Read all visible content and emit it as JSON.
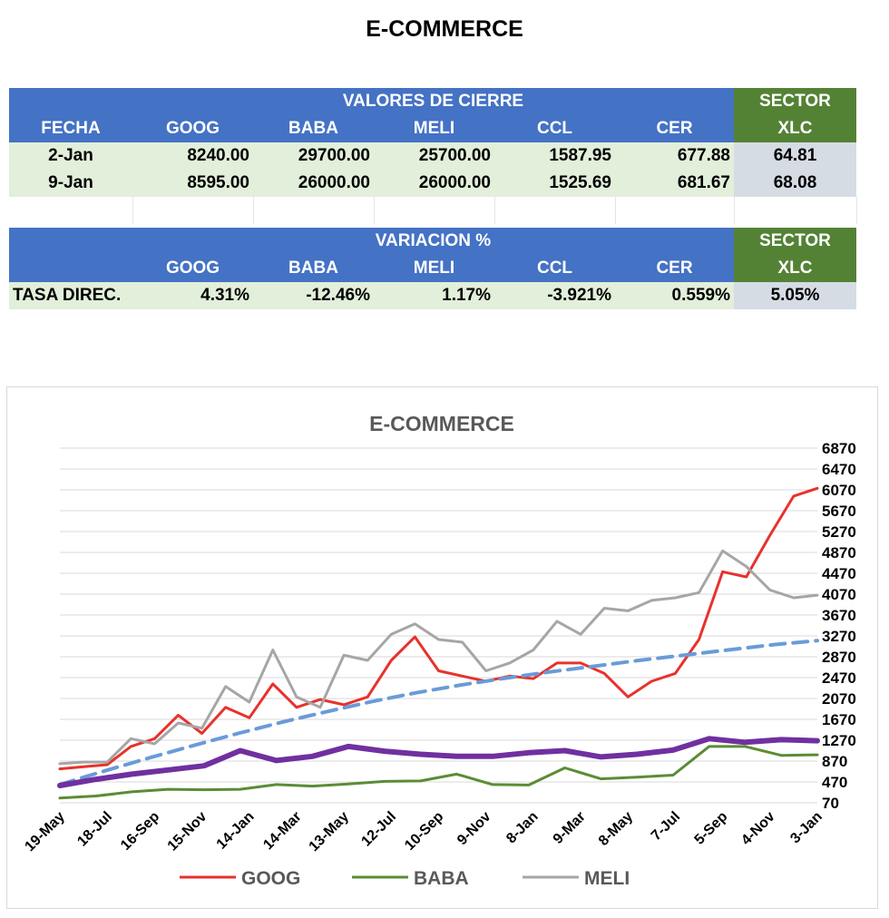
{
  "page": {
    "title": "E-COMMERCE"
  },
  "closing_table": {
    "group_header": "VALORES DE CIERRE",
    "sector_label": "SECTOR",
    "columns": [
      "FECHA",
      "GOOG",
      "BABA",
      "MELI",
      "CCL",
      "CER",
      "XLC"
    ],
    "rows": [
      [
        "2-Jan",
        "8240.00",
        "29700.00",
        "25700.00",
        "1587.95",
        "677.88",
        "64.81"
      ],
      [
        "9-Jan",
        "8595.00",
        "26000.00",
        "26000.00",
        "1525.69",
        "681.67",
        "68.08"
      ]
    ]
  },
  "variation_table": {
    "group_header": "VARIACION %",
    "sector_label": "SECTOR",
    "columns": [
      "",
      "GOOG",
      "BABA",
      "MELI",
      "CCL",
      "CER",
      "XLC"
    ],
    "rows": [
      [
        "TASA DIREC.",
        "4.31%",
        "-12.46%",
        "1.17%",
        "-3.921%",
        "0.559%",
        "5.05%"
      ]
    ]
  },
  "colors": {
    "header_blue": "#4472c4",
    "sector_green": "#548235",
    "row_green": "#e2efda",
    "sector_gray": "#d6dce4"
  },
  "chart_data": {
    "type": "line",
    "title": "E-COMMERCE",
    "x_tick_labels": [
      "19-May",
      "18-Jul",
      "16-Sep",
      "15-Nov",
      "14-Jan",
      "14-Mar",
      "13-May",
      "12-Jul",
      "10-Sep",
      "9-Nov",
      "8-Jan",
      "9-Mar",
      "8-May",
      "7-Jul",
      "5-Sep",
      "4-Nov",
      "3-Jan"
    ],
    "y_ticks": [
      70,
      470,
      870,
      1270,
      1670,
      2070,
      2470,
      2870,
      3270,
      3670,
      4070,
      4470,
      4870,
      5270,
      5670,
      6070,
      6470,
      6870
    ],
    "ylim": [
      70,
      6870
    ],
    "grid": true,
    "legend_position": "bottom",
    "legend": [
      "GOOG",
      "BABA",
      "MELI"
    ],
    "series": [
      {
        "name": "GOOG",
        "color": "#e8322c",
        "width": 3,
        "dash": false,
        "legend": true,
        "values": [
          720,
          760,
          800,
          1150,
          1300,
          1750,
          1400,
          1900,
          1700,
          2350,
          1900,
          2050,
          1950,
          2100,
          2800,
          3250,
          2600,
          2500,
          2400,
          2500,
          2450,
          2750,
          2750,
          2550,
          2100,
          2400,
          2550,
          3200,
          4500,
          4400,
          5200,
          5950,
          6100
        ]
      },
      {
        "name": "BABA",
        "color": "#5b8c35",
        "width": 3,
        "dash": false,
        "legend": true,
        "values": [
          160,
          200,
          280,
          330,
          320,
          330,
          420,
          390,
          430,
          480,
          490,
          620,
          420,
          410,
          740,
          530,
          560,
          600,
          1150,
          1150,
          980,
          990
        ]
      },
      {
        "name": "MELI",
        "color": "#a6a6a6",
        "width": 3,
        "dash": false,
        "legend": true,
        "values": [
          820,
          850,
          850,
          1300,
          1200,
          1600,
          1500,
          2300,
          2000,
          3000,
          2100,
          1900,
          2900,
          2800,
          3300,
          3500,
          3200,
          3150,
          2600,
          2750,
          3000,
          3550,
          3300,
          3800,
          3750,
          3950,
          4000,
          4100,
          4900,
          4600,
          4150,
          4000,
          4050
        ]
      },
      {
        "name": "Trend",
        "color": "#6a9bd8",
        "width": 4,
        "dash": true,
        "legend": false,
        "values": [
          420,
          680,
          930,
          1170,
          1400,
          1620,
          1820,
          2010,
          2180,
          2330,
          2460,
          2580,
          2690,
          2800,
          2900,
          3000,
          3100,
          3180
        ]
      },
      {
        "name": "Sector",
        "color": "#7030a0",
        "width": 6,
        "dash": false,
        "legend": false,
        "values": [
          400,
          520,
          620,
          700,
          780,
          1070,
          880,
          960,
          1150,
          1060,
          1000,
          960,
          960,
          1030,
          1070,
          950,
          1000,
          1080,
          1300,
          1230,
          1280,
          1260
        ]
      }
    ]
  }
}
